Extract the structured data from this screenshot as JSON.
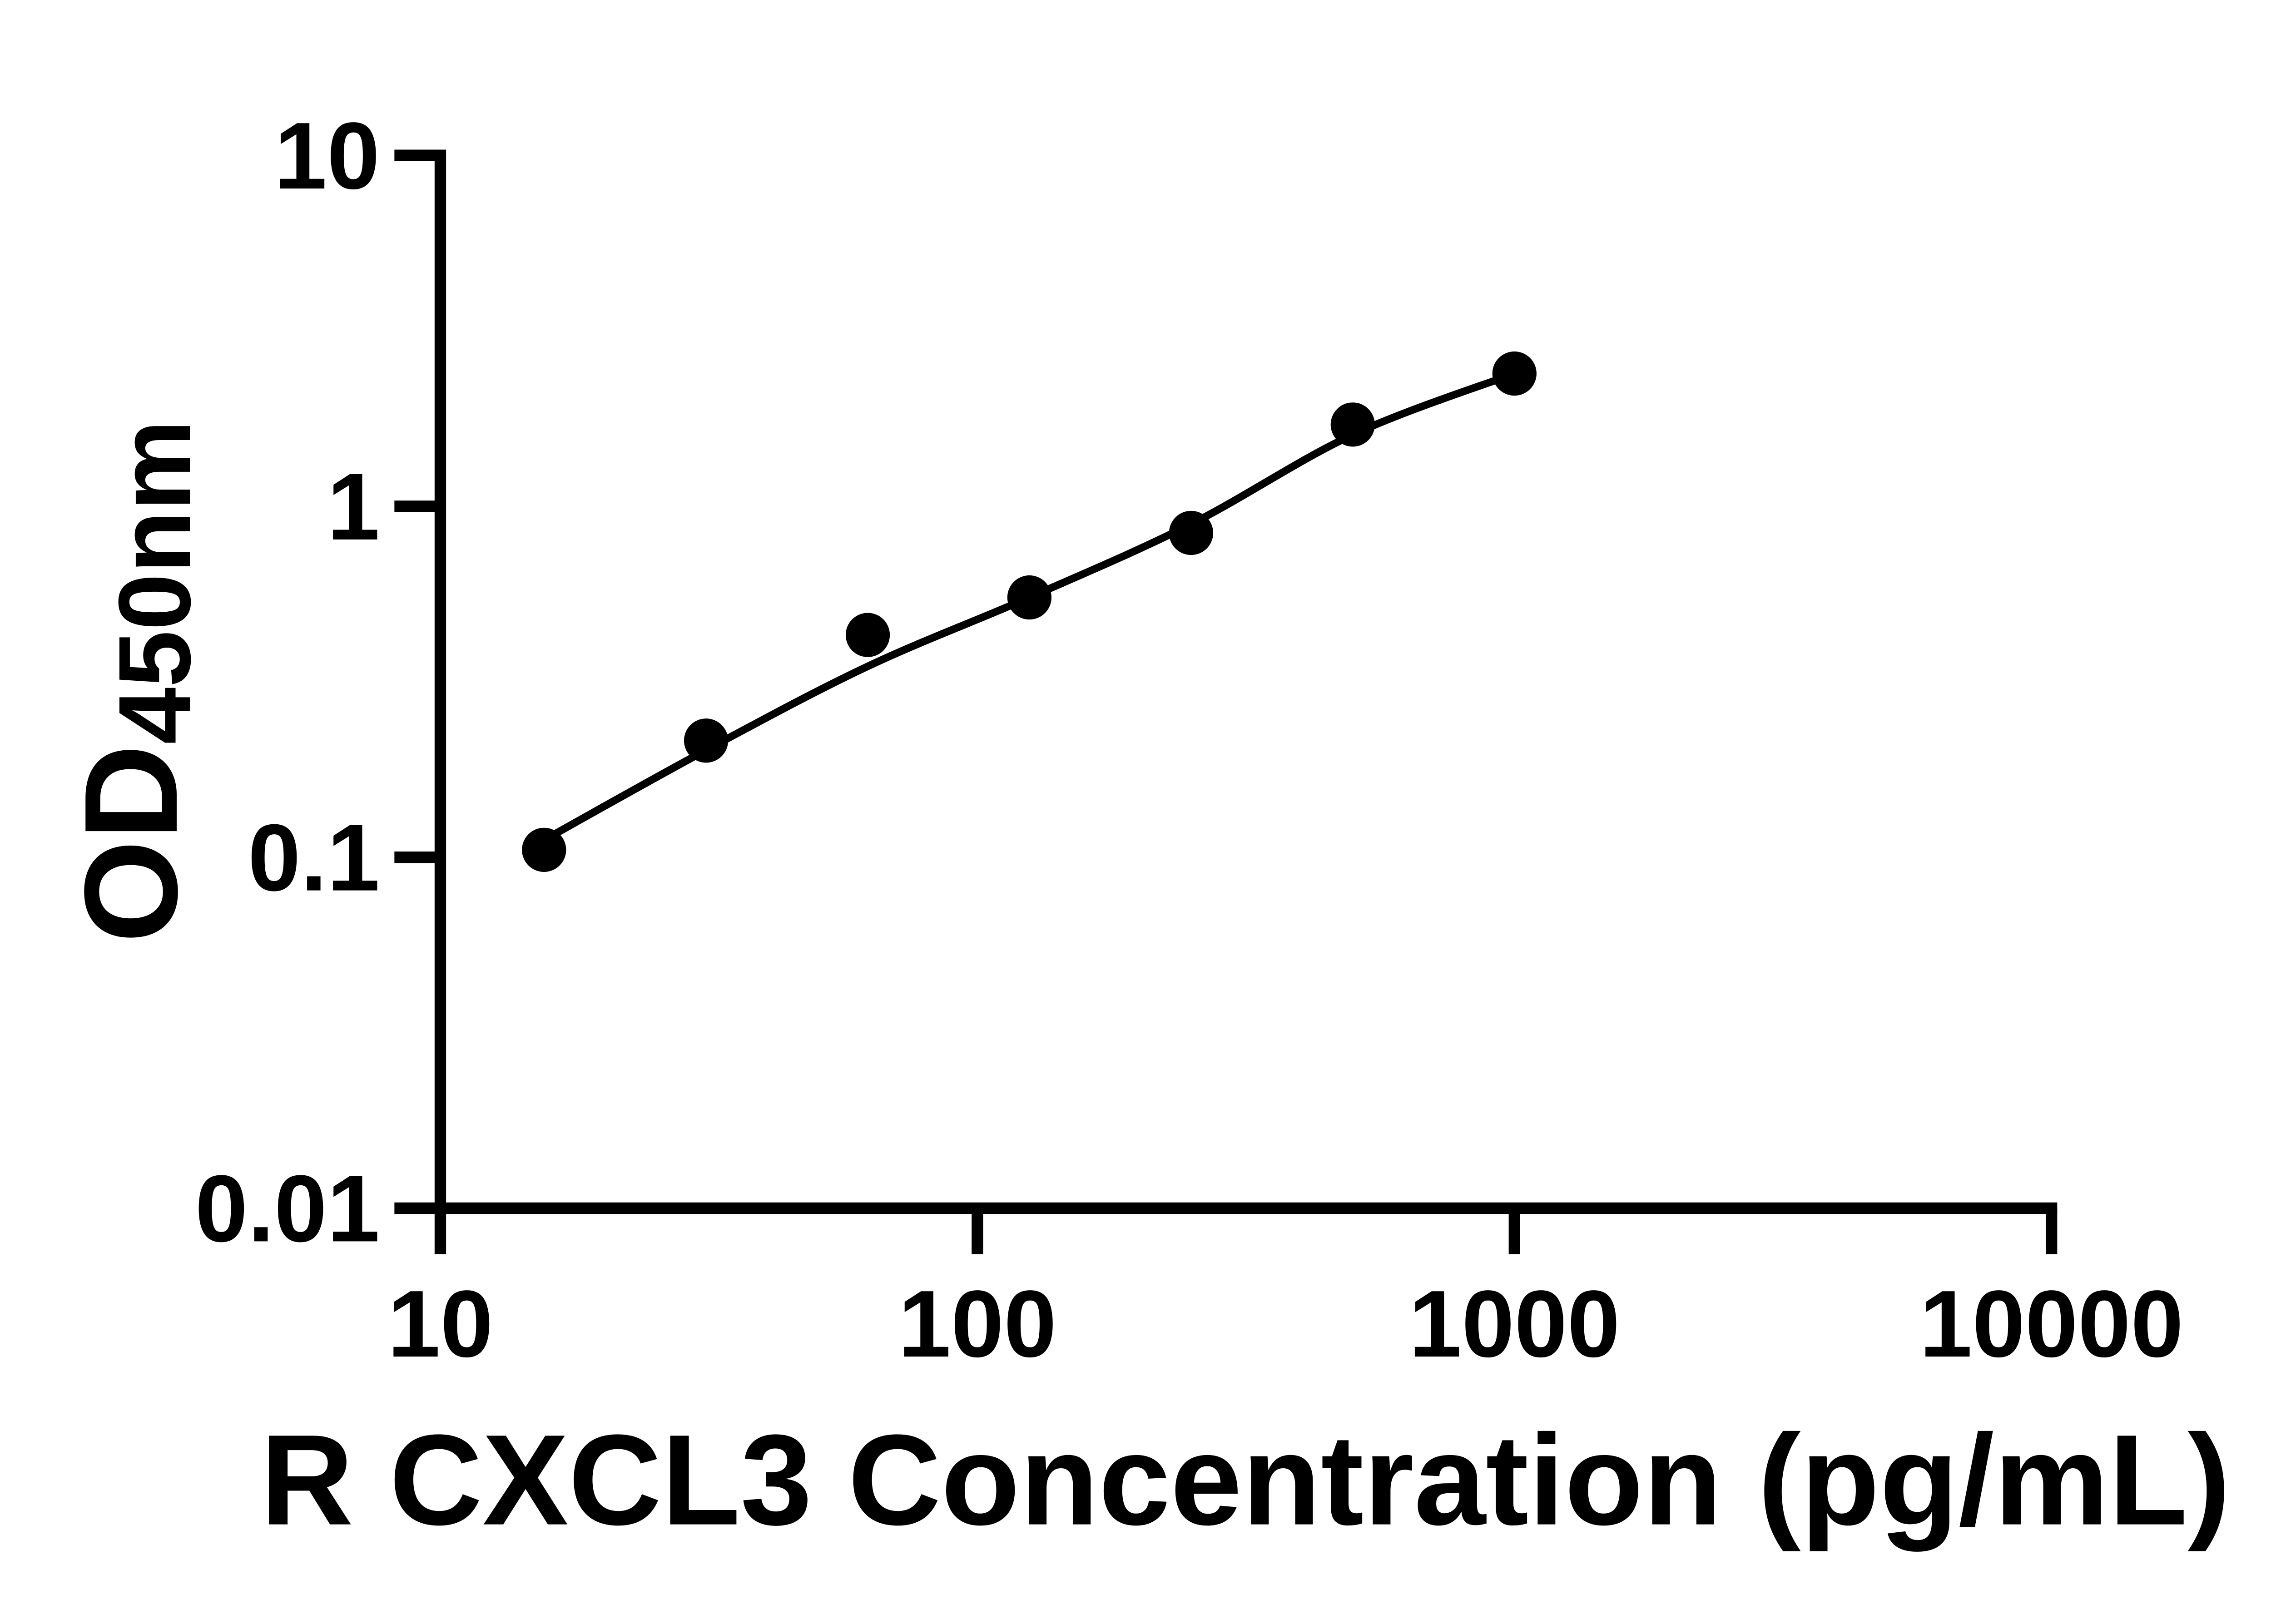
{
  "figure": {
    "background_color": "#ffffff",
    "ink_color": "#000000"
  },
  "chart_data": {
    "type": "scatter",
    "title": "",
    "xlabel": "R CXCL3 Concentration (pg/mL)",
    "ylabel": "OD",
    "ylabel_subscript": "450nm",
    "x_scale": "log10",
    "y_scale": "log10",
    "xlim": [
      10,
      10000
    ],
    "ylim": [
      0.01,
      10
    ],
    "grid": false,
    "legend": null,
    "x_ticks": [
      {
        "value": 10,
        "label": "10"
      },
      {
        "value": 100,
        "label": "100"
      },
      {
        "value": 1000,
        "label": "1000"
      },
      {
        "value": 10000,
        "label": "10000"
      }
    ],
    "y_ticks": [
      {
        "value": 10,
        "label": "10"
      },
      {
        "value": 1,
        "label": "1"
      },
      {
        "value": 0.1,
        "label": "0.1"
      },
      {
        "value": 0.01,
        "label": "0.01"
      }
    ],
    "marker": {
      "shape": "filled-circle",
      "color": "#000000"
    },
    "points": [
      {
        "x": 15.6,
        "y": 0.105
      },
      {
        "x": 31.25,
        "y": 0.215
      },
      {
        "x": 62.5,
        "y": 0.43
      },
      {
        "x": 125,
        "y": 0.55
      },
      {
        "x": 250,
        "y": 0.84
      },
      {
        "x": 500,
        "y": 1.71
      },
      {
        "x": 1000,
        "y": 2.39
      }
    ],
    "fit_line": [
      {
        "x": 15.6,
        "y": 0.112
      },
      {
        "x": 31.25,
        "y": 0.202
      },
      {
        "x": 62.5,
        "y": 0.35
      },
      {
        "x": 125,
        "y": 0.55
      },
      {
        "x": 250,
        "y": 0.89
      },
      {
        "x": 500,
        "y": 1.6
      },
      {
        "x": 1000,
        "y": 2.39
      }
    ]
  }
}
